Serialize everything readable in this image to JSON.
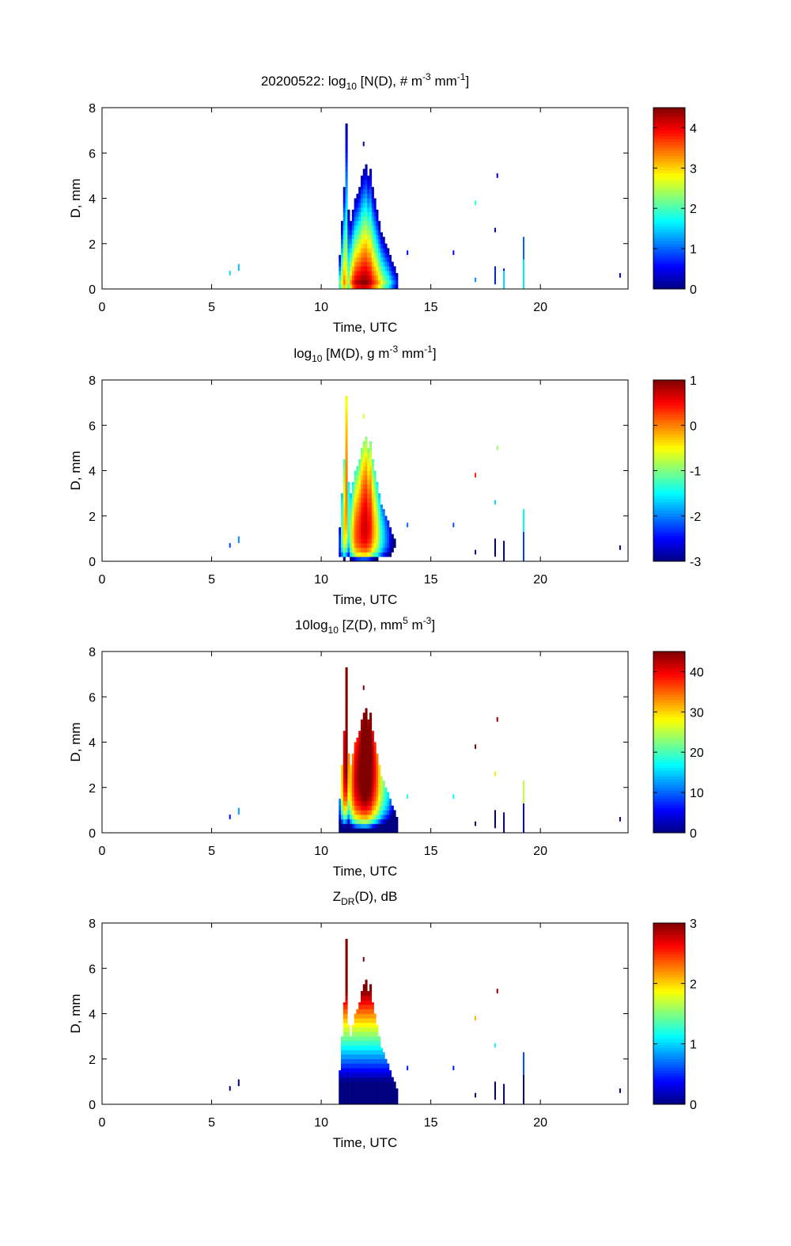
{
  "chart_data": {
    "type": "heatmap",
    "xlabel": "Time, UTC",
    "ylabel": "D, mm",
    "xlim": [
      0,
      24
    ],
    "ylim": [
      0,
      8
    ],
    "xticks": [
      0,
      5,
      10,
      15,
      20
    ],
    "yticks": [
      0,
      2,
      4,
      6,
      8
    ],
    "panels": [
      {
        "title_pre": "20200522: log",
        "title_sub": "10",
        "title_post": " [N(D), # m",
        "sup1": "-3",
        "mid": " mm",
        "sup2": "-1",
        "end": "]",
        "quantity": "logN",
        "clim": [
          0,
          4.5
        ],
        "cticks": [
          0,
          1,
          2,
          3,
          4
        ]
      },
      {
        "title_pre": "log",
        "title_sub": "10",
        "title_post": " [M(D), g m",
        "sup1": "-3",
        "mid": " mm",
        "sup2": "-1",
        "end": "]",
        "quantity": "logM",
        "clim": [
          -3,
          1
        ],
        "cticks": [
          -3,
          -2,
          -1,
          0,
          1
        ]
      },
      {
        "title_pre": "10log",
        "title_sub": "10",
        "title_post": " [Z(D),  mm",
        "sup1": "5",
        "mid": " m",
        "sup2": "-3",
        "end": "]",
        "quantity": "dBZ",
        "clim": [
          0,
          45
        ],
        "cticks": [
          0,
          10,
          20,
          30,
          40
        ]
      },
      {
        "title_pre": "Z",
        "title_sub": "DR",
        "title_post": "(D), dB",
        "sup1": "",
        "mid": "",
        "sup2": "",
        "end": "",
        "quantity": "ZDR",
        "clim": [
          0,
          3
        ],
        "cticks": [
          0,
          1,
          2,
          3
        ]
      }
    ],
    "storm_columns": [
      {
        "t": 10.8,
        "dmax": 1.5,
        "logN0": 2.5
      },
      {
        "t": 10.9,
        "dmax": 3.0,
        "logN0": 3.0
      },
      {
        "t": 11.0,
        "dmax": 4.5,
        "logN0": 3.5
      },
      {
        "t": 11.1,
        "dmax": 7.3,
        "logN0": 3.0
      },
      {
        "t": 11.2,
        "dmax": 3.5,
        "logN0": 2.5
      },
      {
        "t": 11.3,
        "dmax": 3.0,
        "logN0": 3.5
      },
      {
        "t": 11.4,
        "dmax": 3.5,
        "logN0": 4.0
      },
      {
        "t": 11.5,
        "dmax": 4.0,
        "logN0": 4.3
      },
      {
        "t": 11.6,
        "dmax": 4.2,
        "logN0": 4.5
      },
      {
        "t": 11.7,
        "dmax": 4.5,
        "logN0": 4.5
      },
      {
        "t": 11.8,
        "dmax": 5.0,
        "logN0": 4.6
      },
      {
        "t": 11.9,
        "dmax": 5.3,
        "logN0": 4.6
      },
      {
        "t": 12.0,
        "dmax": 5.5,
        "logN0": 4.6
      },
      {
        "t": 12.1,
        "dmax": 5.0,
        "logN0": 4.5
      },
      {
        "t": 12.2,
        "dmax": 5.3,
        "logN0": 4.3
      },
      {
        "t": 12.3,
        "dmax": 4.5,
        "logN0": 4.0
      },
      {
        "t": 12.4,
        "dmax": 4.0,
        "logN0": 3.8
      },
      {
        "t": 12.5,
        "dmax": 3.5,
        "logN0": 3.6
      },
      {
        "t": 12.6,
        "dmax": 3.0,
        "logN0": 3.3
      },
      {
        "t": 12.7,
        "dmax": 2.5,
        "logN0": 3.0
      },
      {
        "t": 12.8,
        "dmax": 2.3,
        "logN0": 2.7
      },
      {
        "t": 12.9,
        "dmax": 2.0,
        "logN0": 2.5
      },
      {
        "t": 13.0,
        "dmax": 1.8,
        "logN0": 2.3
      },
      {
        "t": 13.1,
        "dmax": 1.5,
        "logN0": 2.0
      },
      {
        "t": 13.2,
        "dmax": 1.2,
        "logN0": 1.6
      },
      {
        "t": 13.3,
        "dmax": 1.0,
        "logN0": 1.3
      },
      {
        "t": 13.4,
        "dmax": 0.7,
        "logN0": 1.0
      }
    ],
    "isolated_points": [
      {
        "t": 5.8,
        "d0": 0.6,
        "d1": 0.8,
        "logN": 1.5
      },
      {
        "t": 6.2,
        "d0": 0.8,
        "d1": 1.1,
        "logN": 1.4
      },
      {
        "t": 11.9,
        "d0": 6.3,
        "d1": 6.5,
        "logN": 0.2
      },
      {
        "t": 13.9,
        "d0": 1.5,
        "d1": 1.7,
        "logN": 0.6
      },
      {
        "t": 16.0,
        "d0": 1.5,
        "d1": 1.7,
        "logN": 0.5
      },
      {
        "t": 17.0,
        "d0": 0.3,
        "d1": 0.5,
        "logN": 1.2
      },
      {
        "t": 17.0,
        "d0": 3.7,
        "d1": 3.9,
        "logN": 1.9
      },
      {
        "t": 17.9,
        "d0": 0.2,
        "d1": 1.0,
        "logN": 0.7
      },
      {
        "t": 17.9,
        "d0": 2.5,
        "d1": 2.7,
        "logN": 0.4
      },
      {
        "t": 18.0,
        "d0": 4.9,
        "d1": 5.1,
        "logN": 0.3
      },
      {
        "t": 18.3,
        "d0": 0.0,
        "d1": 0.8,
        "logN": 1.5
      },
      {
        "t": 18.3,
        "d0": 0.8,
        "d1": 0.9,
        "logN": 0.4
      },
      {
        "t": 19.2,
        "d0": 0.0,
        "d1": 1.3,
        "logN": 1.6
      },
      {
        "t": 19.2,
        "d0": 1.3,
        "d1": 2.3,
        "logN": 1.0
      },
      {
        "t": 23.6,
        "d0": 0.5,
        "d1": 0.7,
        "logN": 0.4
      }
    ]
  }
}
